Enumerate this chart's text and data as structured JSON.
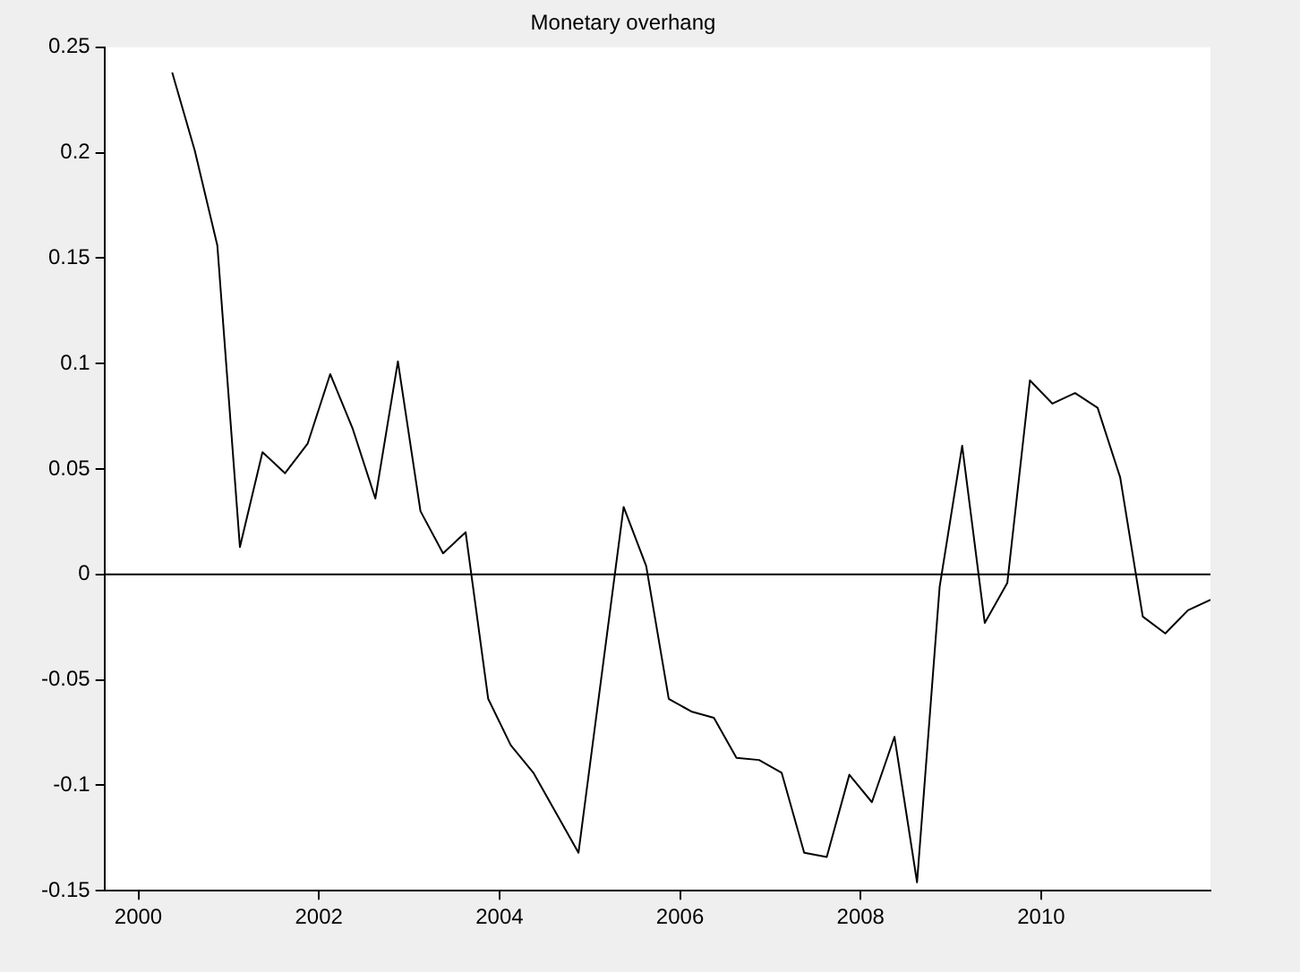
{
  "chart_data": {
    "type": "line",
    "title": "Monetary overhang",
    "x": [
      2000.375,
      2000.625,
      2000.875,
      2001.125,
      2001.375,
      2001.625,
      2001.875,
      2002.125,
      2002.375,
      2002.625,
      2002.875,
      2003.125,
      2003.375,
      2003.625,
      2003.875,
      2004.125,
      2004.375,
      2004.625,
      2004.875,
      2005.125,
      2005.375,
      2005.625,
      2005.875,
      2006.125,
      2006.375,
      2006.625,
      2006.875,
      2007.125,
      2007.375,
      2007.625,
      2007.875,
      2008.125,
      2008.375,
      2008.625,
      2008.875,
      2009.125,
      2009.375,
      2009.625,
      2009.875,
      2010.125,
      2010.375,
      2010.625,
      2010.875,
      2011.125,
      2011.375,
      2011.625,
      2011.875
    ],
    "series": [
      {
        "color": "#000000",
        "values": [
          0.238,
          0.201,
          0.156,
          0.013,
          0.058,
          0.048,
          0.062,
          0.095,
          0.069,
          0.036,
          0.101,
          0.03,
          0.01,
          0.02,
          -0.059,
          -0.081,
          -0.094,
          -0.113,
          -0.132,
          -0.05,
          0.032,
          0.004,
          -0.059,
          -0.065,
          -0.068,
          -0.087,
          -0.088,
          -0.094,
          -0.132,
          -0.134,
          -0.095,
          -0.108,
          -0.077,
          -0.146,
          -0.006,
          0.061,
          -0.023,
          -0.004,
          0.092,
          0.081,
          0.086,
          0.079,
          0.046,
          -0.02,
          -0.028,
          -0.017,
          -0.012
        ]
      }
    ],
    "xlim": [
      1999.625,
      2011.875
    ],
    "xticks": [
      2000,
      2002,
      2004,
      2006,
      2008,
      2010
    ],
    "ylim": [
      -0.15,
      0.25
    ],
    "yticks": [
      -0.15,
      -0.1,
      -0.05,
      0,
      0.05,
      0.1,
      0.15,
      0.2,
      0.25
    ],
    "ref_lines": [
      {
        "axis": "y",
        "value": 0,
        "color": "#000000"
      }
    ],
    "marker": "none",
    "line_style": "solid"
  }
}
